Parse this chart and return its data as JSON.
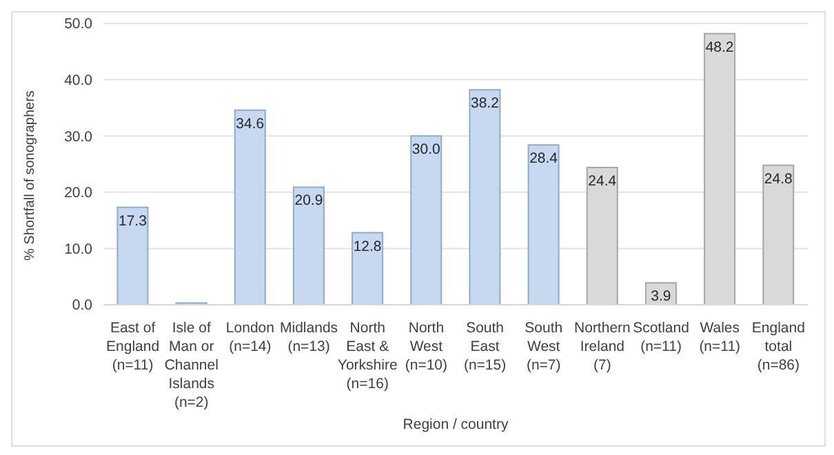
{
  "chart_data": {
    "type": "bar",
    "xlabel": "Region / country",
    "ylabel": "% Shortfall of sonographers",
    "categories": [
      "East of England (n=11)",
      "Isle of Man or Channel Islands (n=2)",
      "London (n=14)",
      "Midlands (n=13)",
      "North East & Yorkshire (n=16)",
      "North West (n=10)",
      "South East (n=15)",
      "South West (n=7)",
      "Northern Ireland (7)",
      "Scotland (n=11)",
      "Wales (n=11)",
      "England total (n=86)"
    ],
    "values": [
      17.3,
      0.3,
      34.6,
      20.9,
      12.8,
      30.0,
      38.2,
      28.4,
      24.4,
      3.9,
      48.2,
      24.8
    ],
    "value_labels": [
      "17.3",
      null,
      "34.6",
      "20.9",
      "12.8",
      "30.0",
      "38.2",
      "28.4",
      "24.4",
      "3.9",
      "48.2",
      "24.8"
    ],
    "colors": [
      "#c6d9f0",
      "#c6d9f0",
      "#c6d9f0",
      "#c6d9f0",
      "#c6d9f0",
      "#c6d9f0",
      "#c6d9f0",
      "#c6d9f0",
      "#d9d9d9",
      "#d9d9d9",
      "#d9d9d9",
      "#d9d9d9"
    ],
    "ylim": [
      0,
      50
    ],
    "yticks": [
      {
        "value": 0,
        "label": "0.0"
      },
      {
        "value": 10,
        "label": "10.0"
      },
      {
        "value": 20,
        "label": "20.0"
      },
      {
        "value": 30,
        "label": "30.0"
      },
      {
        "value": 40,
        "label": "40.0"
      },
      {
        "value": 50,
        "label": "50.0"
      }
    ],
    "grid": "y",
    "legend": false
  }
}
